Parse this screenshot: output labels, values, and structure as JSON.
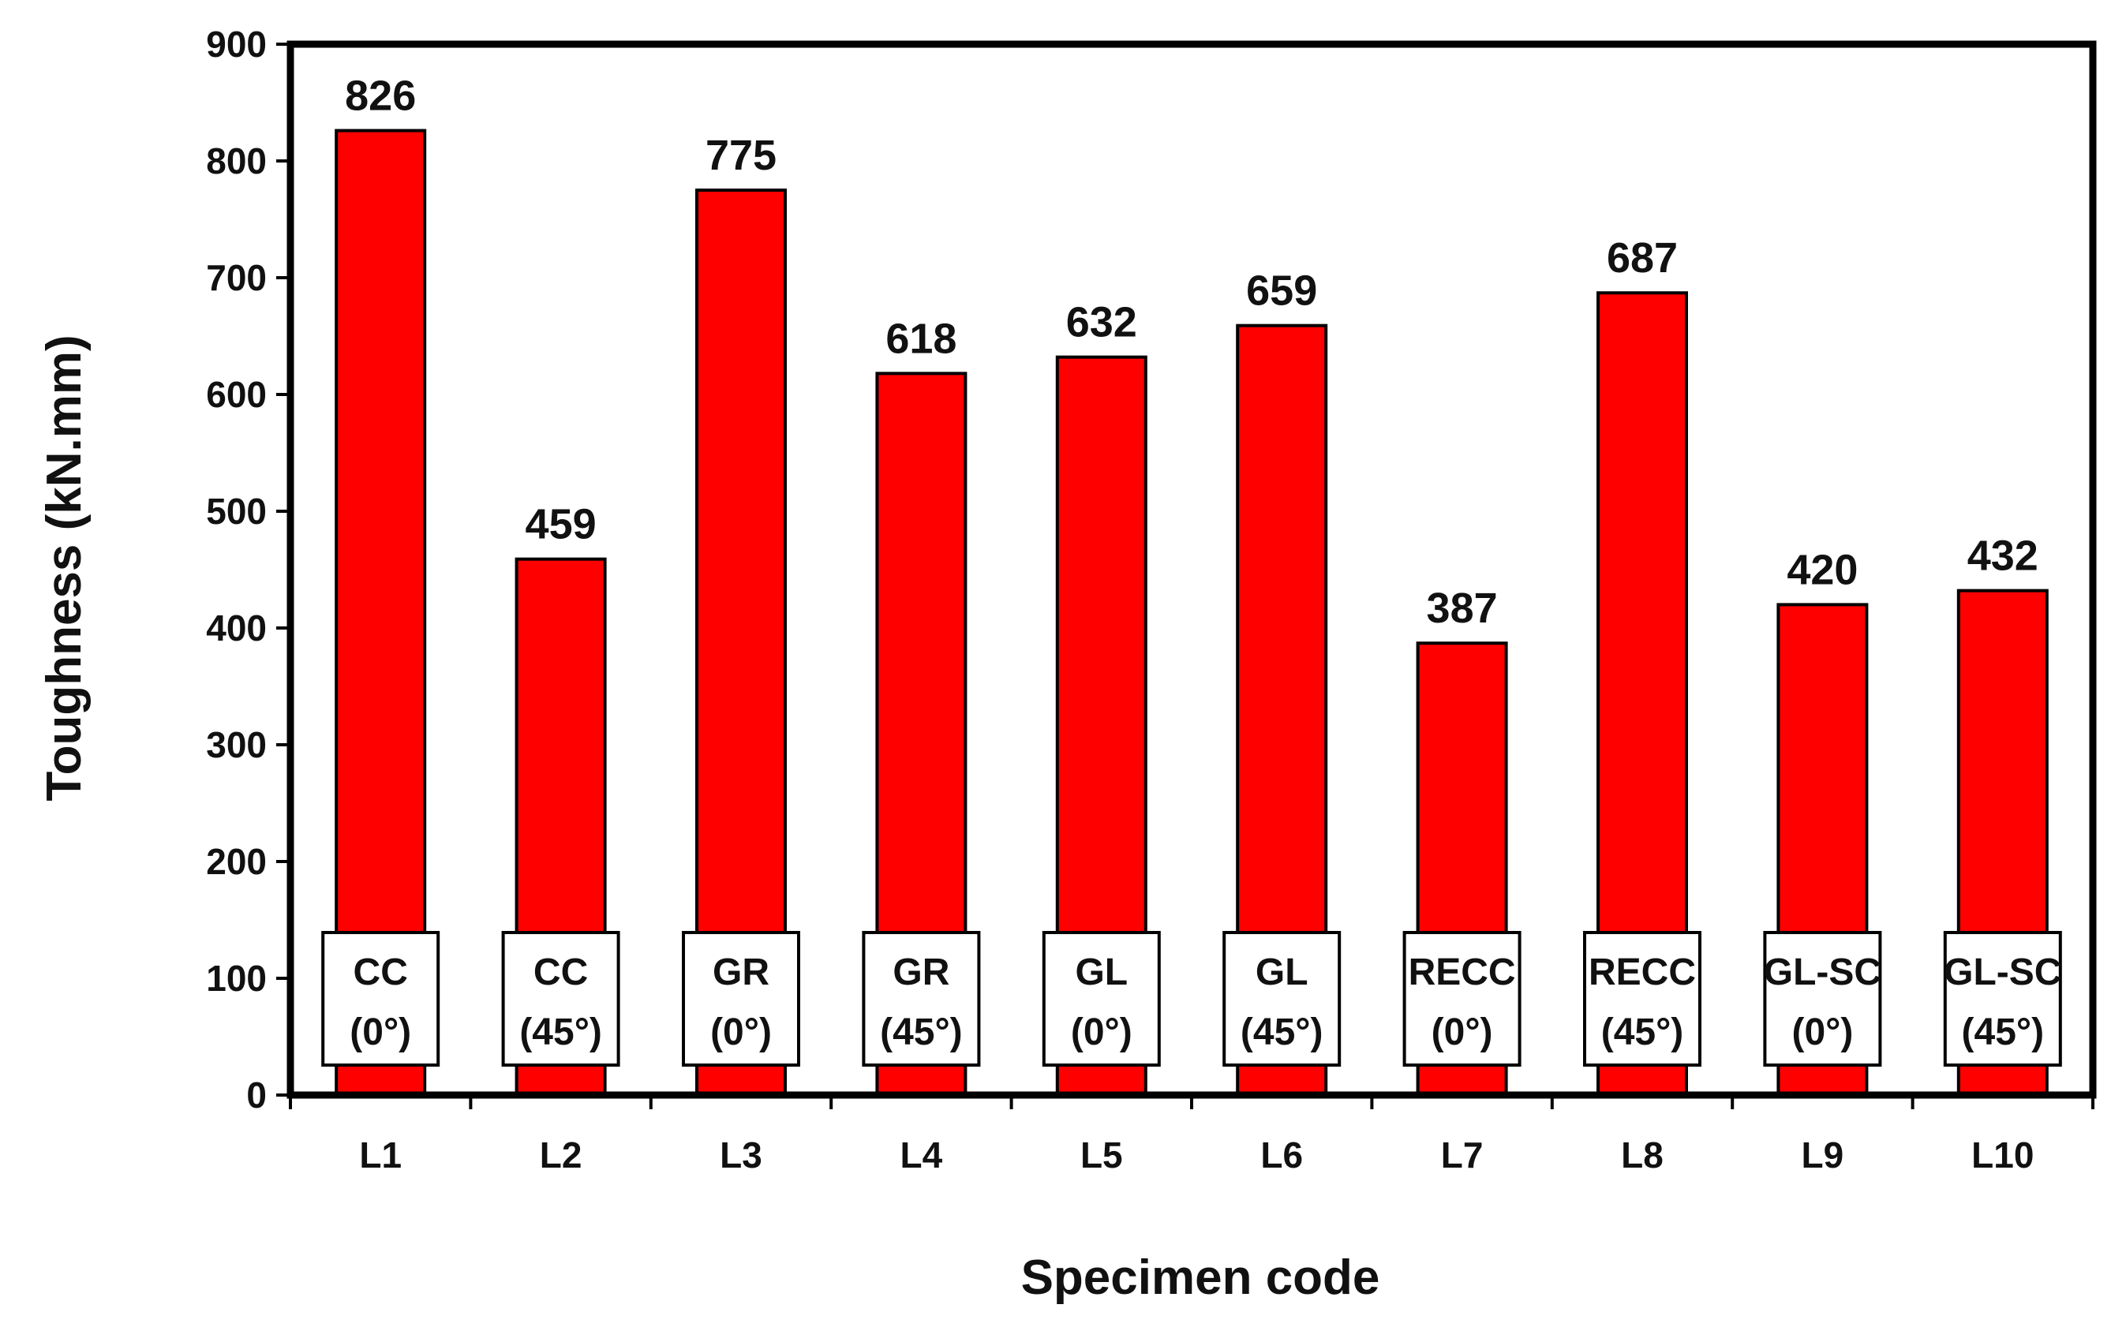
{
  "chart_data": {
    "type": "bar",
    "categories": [
      "L1",
      "L2",
      "L3",
      "L4",
      "L5",
      "L6",
      "L7",
      "L8",
      "L9",
      "L10"
    ],
    "values": [
      826,
      459,
      775,
      618,
      632,
      659,
      387,
      687,
      420,
      432
    ],
    "data_labels": [
      "826",
      "459",
      "775",
      "618",
      "632",
      "659",
      "387",
      "687",
      "420",
      "432"
    ],
    "annotations": [
      [
        "CC",
        "(0°)"
      ],
      [
        "CC",
        "(45°)"
      ],
      [
        "GR",
        "(0°)"
      ],
      [
        "GR",
        "(45°)"
      ],
      [
        "GL",
        "(0°)"
      ],
      [
        "GL",
        "(45°)"
      ],
      [
        "RECC",
        "(0°)"
      ],
      [
        "RECC",
        "(45°)"
      ],
      [
        "GL-SC",
        "(0°)"
      ],
      [
        "GL-SC",
        "(45°)"
      ]
    ],
    "xlabel": "Specimen code",
    "ylabel": "Toughness (kN.mm)",
    "ylim": [
      0,
      900
    ],
    "yticks": [
      "0",
      "100",
      "200",
      "300",
      "400",
      "500",
      "600",
      "700",
      "800",
      "900"
    ],
    "grid": false,
    "bar_color": "#ff0000",
    "edge_color": "#000000"
  }
}
